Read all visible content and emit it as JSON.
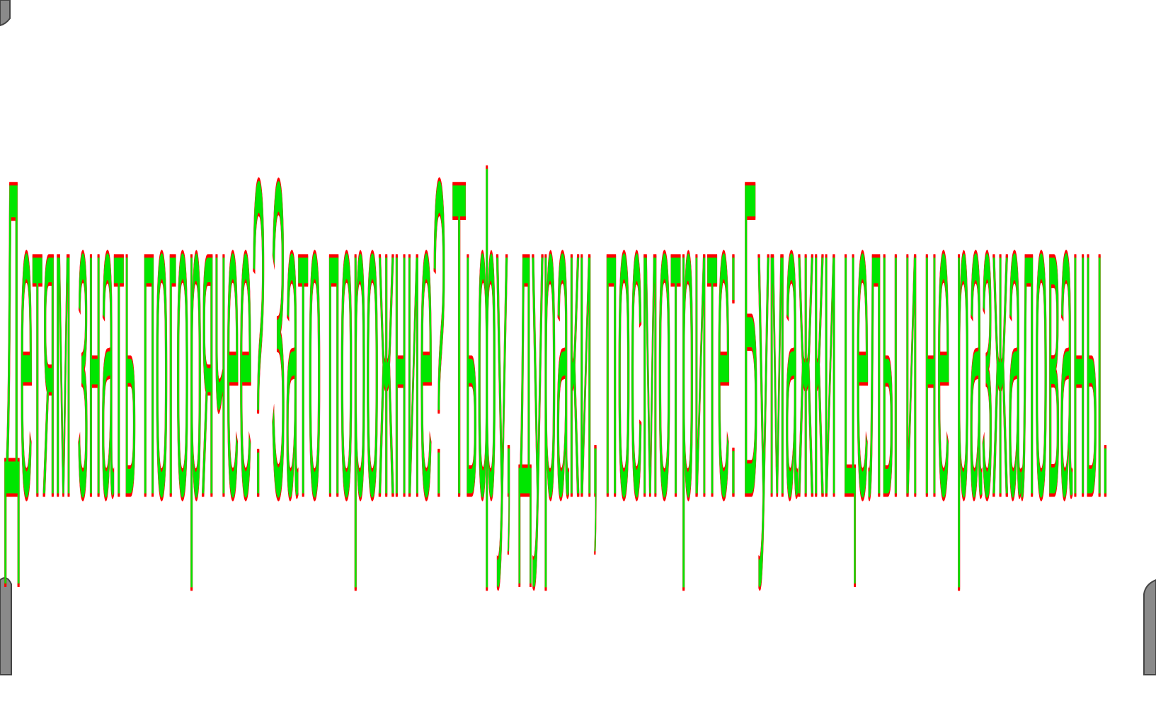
{
  "text": "Детям знать погорячее? Зато порожние? Тьфу, дураки, посмотрите: Бумажки целы и не разжалованы."
}
